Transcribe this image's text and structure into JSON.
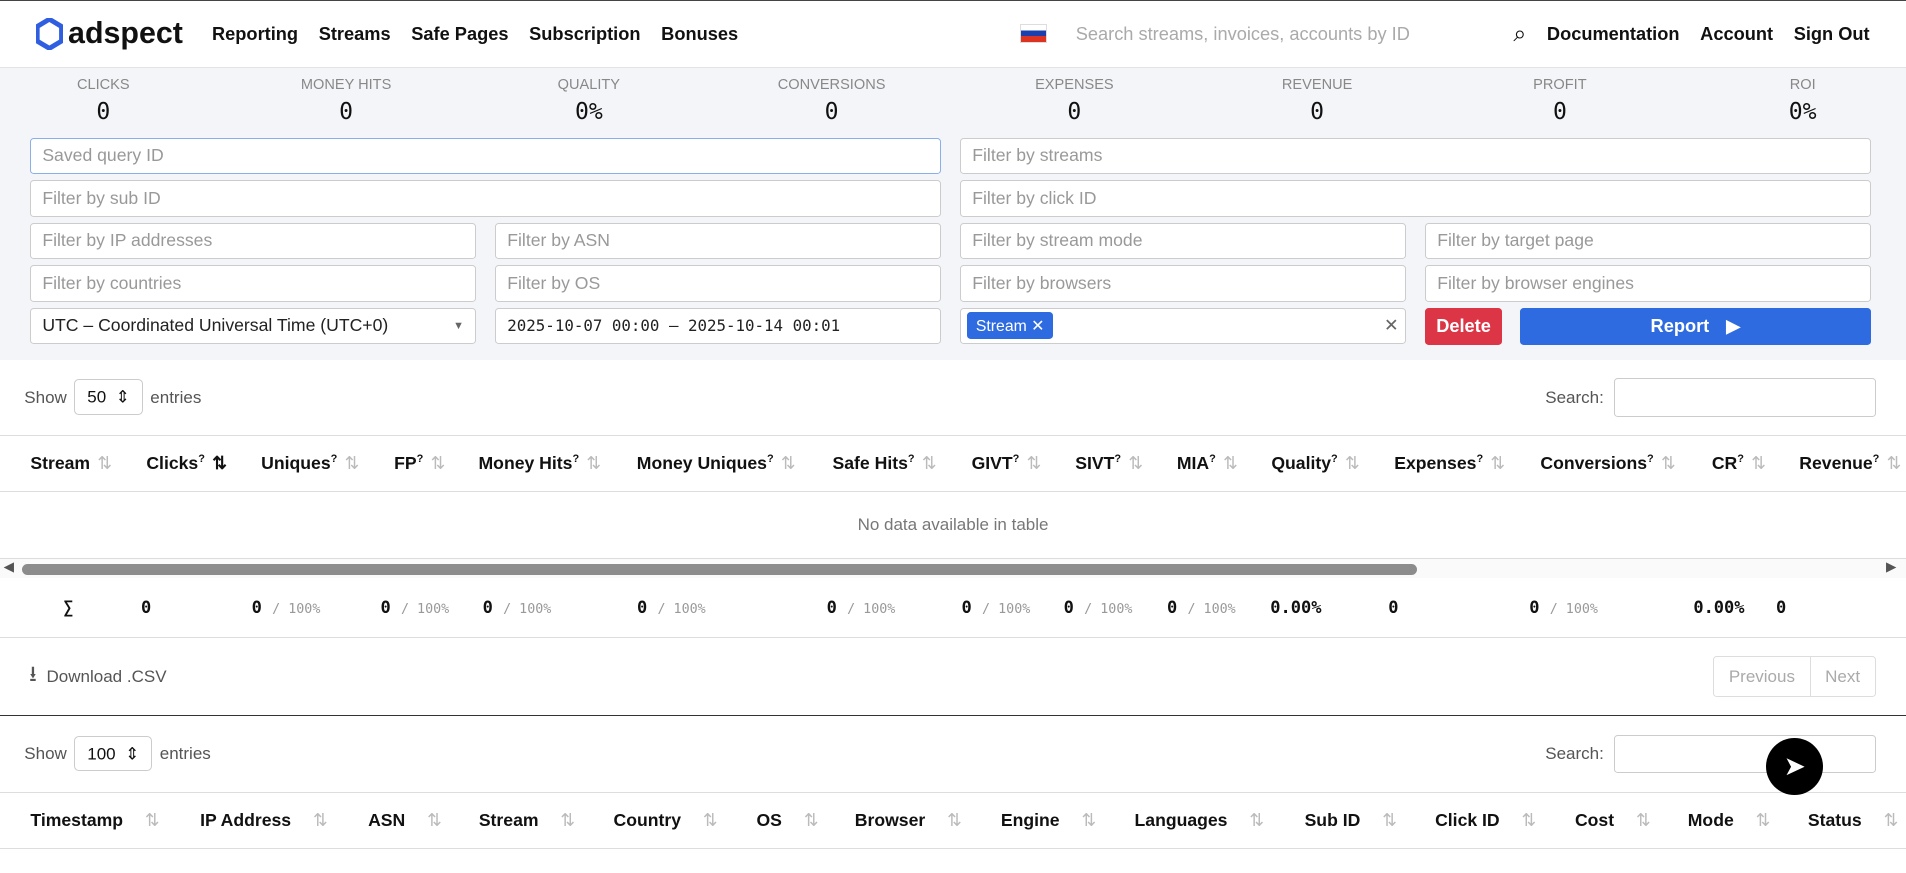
{
  "nav": {
    "brand": "adspect",
    "items": [
      "Reporting",
      "Streams",
      "Safe Pages",
      "Subscription",
      "Bonuses"
    ],
    "search_placeholder": "Search streams, invoices, accounts by ID",
    "right": [
      "Documentation",
      "Account",
      "Sign Out"
    ]
  },
  "stats": [
    {
      "label": "CLICKS",
      "value": "0"
    },
    {
      "label": "MONEY HITS",
      "value": "0"
    },
    {
      "label": "QUALITY",
      "value": "0%"
    },
    {
      "label": "CONVERSIONS",
      "value": "0"
    },
    {
      "label": "EXPENSES",
      "value": "0"
    },
    {
      "label": "REVENUE",
      "value": "0"
    },
    {
      "label": "PROFIT",
      "value": "0"
    },
    {
      "label": "ROI",
      "value": "0%"
    }
  ],
  "filters": {
    "saved_query": "Saved query ID",
    "streams": "Filter by streams",
    "sub_id": "Filter by sub ID",
    "click_id": "Filter by click ID",
    "ip": "Filter by IP addresses",
    "asn": "Filter by ASN",
    "stream_mode": "Filter by stream mode",
    "target_page": "Filter by target page",
    "countries": "Filter by countries",
    "os": "Filter by OS",
    "browsers": "Filter by browsers",
    "engines": "Filter by browser engines",
    "timezone": "UTC – Coordinated Universal Time (UTC+0)",
    "date_range": "2025-10-07 00:00 – 2025-10-14 00:01",
    "group_tag": "Stream",
    "delete": "Delete",
    "report": "Report"
  },
  "table1": {
    "show": "Show",
    "entries_value": "50",
    "entries": "entries",
    "search": "Search:",
    "columns": [
      "Stream",
      "Clicks",
      "Uniques",
      "FP",
      "Money Hits",
      "Money Uniques",
      "Safe Hits",
      "GIVT",
      "SIVT",
      "MIA",
      "Quality",
      "Expenses",
      "Conversions",
      "CR",
      "Revenue"
    ],
    "empty": "No data available in table",
    "totals": [
      "∑",
      "0",
      "0",
      "0",
      "0",
      "0",
      "0",
      "0",
      "0",
      "0",
      "0.00%",
      "0",
      "0",
      "0.00%",
      "0"
    ],
    "pct": "/ 100%",
    "download": "Download .CSV",
    "previous": "Previous",
    "next": "Next"
  },
  "table2": {
    "show": "Show",
    "entries_value": "100",
    "entries": "entries",
    "search": "Search:",
    "columns": [
      "Timestamp",
      "IP Address",
      "ASN",
      "Stream",
      "Country",
      "OS",
      "Browser",
      "Engine",
      "Languages",
      "Sub ID",
      "Click ID",
      "Cost",
      "Mode",
      "Status"
    ]
  }
}
